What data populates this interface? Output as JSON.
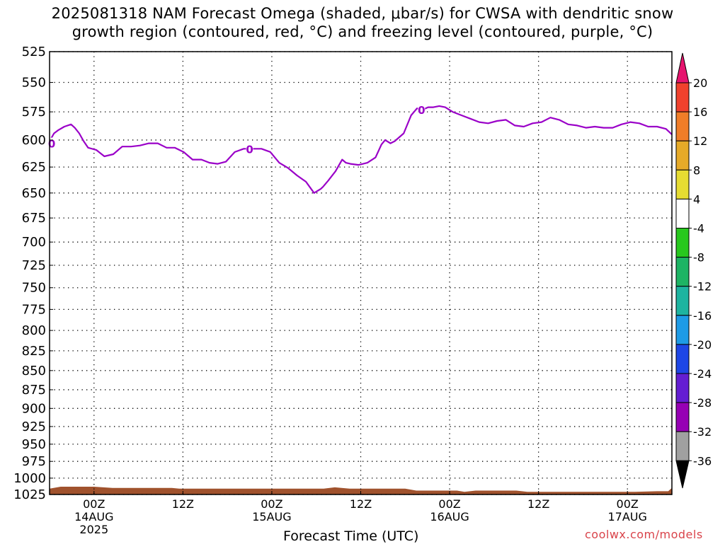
{
  "title": {
    "line1": "2025081318 NAM Forecast Omega (shaded, μbar/s) for CWSA with dendritic snow",
    "line2": "growth region (contoured, red, °C) and freezing level (contoured, purple, °C)"
  },
  "credit": "coolwx.com/models",
  "chart_data": {
    "type": "line",
    "title": "2025081318 NAM Forecast Omega (shaded, μbar/s) for CWSA with dendritic snow growth region (contoured, red, °C) and freezing level (contoured, purple, °C)",
    "xlabel": "Forecast Time (UTC)",
    "ylabel": "",
    "y_scale": "log-pressure (inverted)",
    "ylim": [
      1025,
      525
    ],
    "xlim_hours_from_2025-08-13T18Z": [
      0,
      84
    ],
    "y_ticks": [
      525,
      550,
      575,
      600,
      625,
      650,
      675,
      700,
      725,
      750,
      775,
      800,
      825,
      850,
      875,
      900,
      925,
      950,
      975,
      1000,
      1025
    ],
    "x_ticks": [
      {
        "h": 6,
        "label": "00Z",
        "date": "14AUG",
        "year": "2025"
      },
      {
        "h": 18,
        "label": "12Z",
        "date": "",
        "year": ""
      },
      {
        "h": 30,
        "label": "00Z",
        "date": "15AUG",
        "year": ""
      },
      {
        "h": 42,
        "label": "12Z",
        "date": "",
        "year": ""
      },
      {
        "h": 54,
        "label": "00Z",
        "date": "16AUG",
        "year": ""
      },
      {
        "h": 66,
        "label": "12Z",
        "date": "",
        "year": ""
      },
      {
        "h": 78,
        "label": "00Z",
        "date": "17AUG",
        "year": ""
      }
    ],
    "grid": true,
    "series": [
      {
        "name": "0",
        "color": "#9a00c8",
        "x_hours": [
          0,
          0.6,
          1.2,
          2.0,
          2.9,
          3.4,
          4.0,
          4.6,
          5.2,
          6.3,
          7.4,
          8.6,
          9.8,
          11.0,
          12.2,
          13.4,
          14.6,
          15.8,
          16.9,
          18.1,
          19.3,
          20.5,
          21.6,
          22.7,
          23.8,
          25.0,
          26.2,
          27.4,
          28.6,
          29.8,
          31.0,
          32.2,
          33.4,
          34.6,
          35.7,
          36.6,
          36.9,
          37.6,
          38.6,
          39.5,
          40.0,
          40.6,
          41.7,
          42.9,
          44.0,
          44.8,
          45.3,
          46.0,
          46.6,
          47.8,
          48.8,
          49.6,
          50.4,
          51.1,
          51.8,
          52.6,
          53.4,
          54.4,
          55.6,
          56.8,
          58.0,
          59.2,
          60.4,
          61.6,
          62.8,
          64.0,
          65.2,
          66.4,
          67.6,
          68.8,
          70.0,
          71.2,
          72.4,
          73.6,
          74.8,
          76.0,
          77.2,
          78.4,
          79.6,
          80.8,
          82.0,
          83.2,
          84.0
        ],
        "y_hpa": [
          601,
          594,
          591,
          588,
          586,
          589,
          594,
          601,
          607,
          609,
          615,
          613,
          606,
          606,
          605,
          603,
          603,
          607,
          607,
          611,
          618,
          618,
          621,
          622,
          620,
          611,
          608,
          608,
          608,
          611,
          621,
          626,
          633,
          639,
          650,
          646,
          644,
          638,
          629,
          618,
          621,
          622,
          623,
          621,
          616,
          604,
          600,
          603,
          601,
          594,
          578,
          572,
          573,
          571,
          571,
          570,
          571,
          575,
          578,
          581,
          584,
          585,
          583,
          582,
          587,
          588,
          585,
          584,
          580,
          582,
          586,
          587,
          589,
          588,
          589,
          589,
          586,
          584,
          585,
          588,
          588,
          590,
          595
        ]
      }
    ],
    "contour_labels": [
      {
        "text": "0",
        "h": 0.3,
        "hpa": 603
      },
      {
        "text": "0",
        "h": 27.0,
        "hpa": 608
      },
      {
        "text": "0",
        "h": 50.2,
        "hpa": 573
      }
    ],
    "surface_pressure": {
      "color": "#a0522d",
      "x_hours": [
        0,
        1.5,
        6.0,
        8.5,
        16.5,
        17.5,
        37.0,
        38.5,
        40.5,
        48.0,
        49.5,
        55.0,
        56.0,
        57.5,
        63.0,
        64.5,
        79.0,
        82.0,
        83.5,
        84.0
      ],
      "y_hpa": [
        1016,
        1013,
        1013,
        1015,
        1015,
        1016,
        1016,
        1014,
        1016,
        1016,
        1019,
        1019,
        1021,
        1019,
        1019,
        1021,
        1021,
        1020,
        1020,
        1015
      ]
    },
    "colorbar": {
      "label_values": [
        20,
        16,
        12,
        8,
        4,
        -4,
        -8,
        -12,
        -16,
        -20,
        -24,
        -28,
        -32,
        -36
      ],
      "colors": [
        "#e6146e",
        "#f0412d",
        "#f07d28",
        "#e6aa28",
        "#e6dc32",
        "#ffffff",
        "#28c81e",
        "#1eb464",
        "#1eb4a0",
        "#1e9be6",
        "#1e46e6",
        "#641ed2",
        "#9600b4",
        "#a0a0a0",
        "#000000"
      ]
    }
  }
}
